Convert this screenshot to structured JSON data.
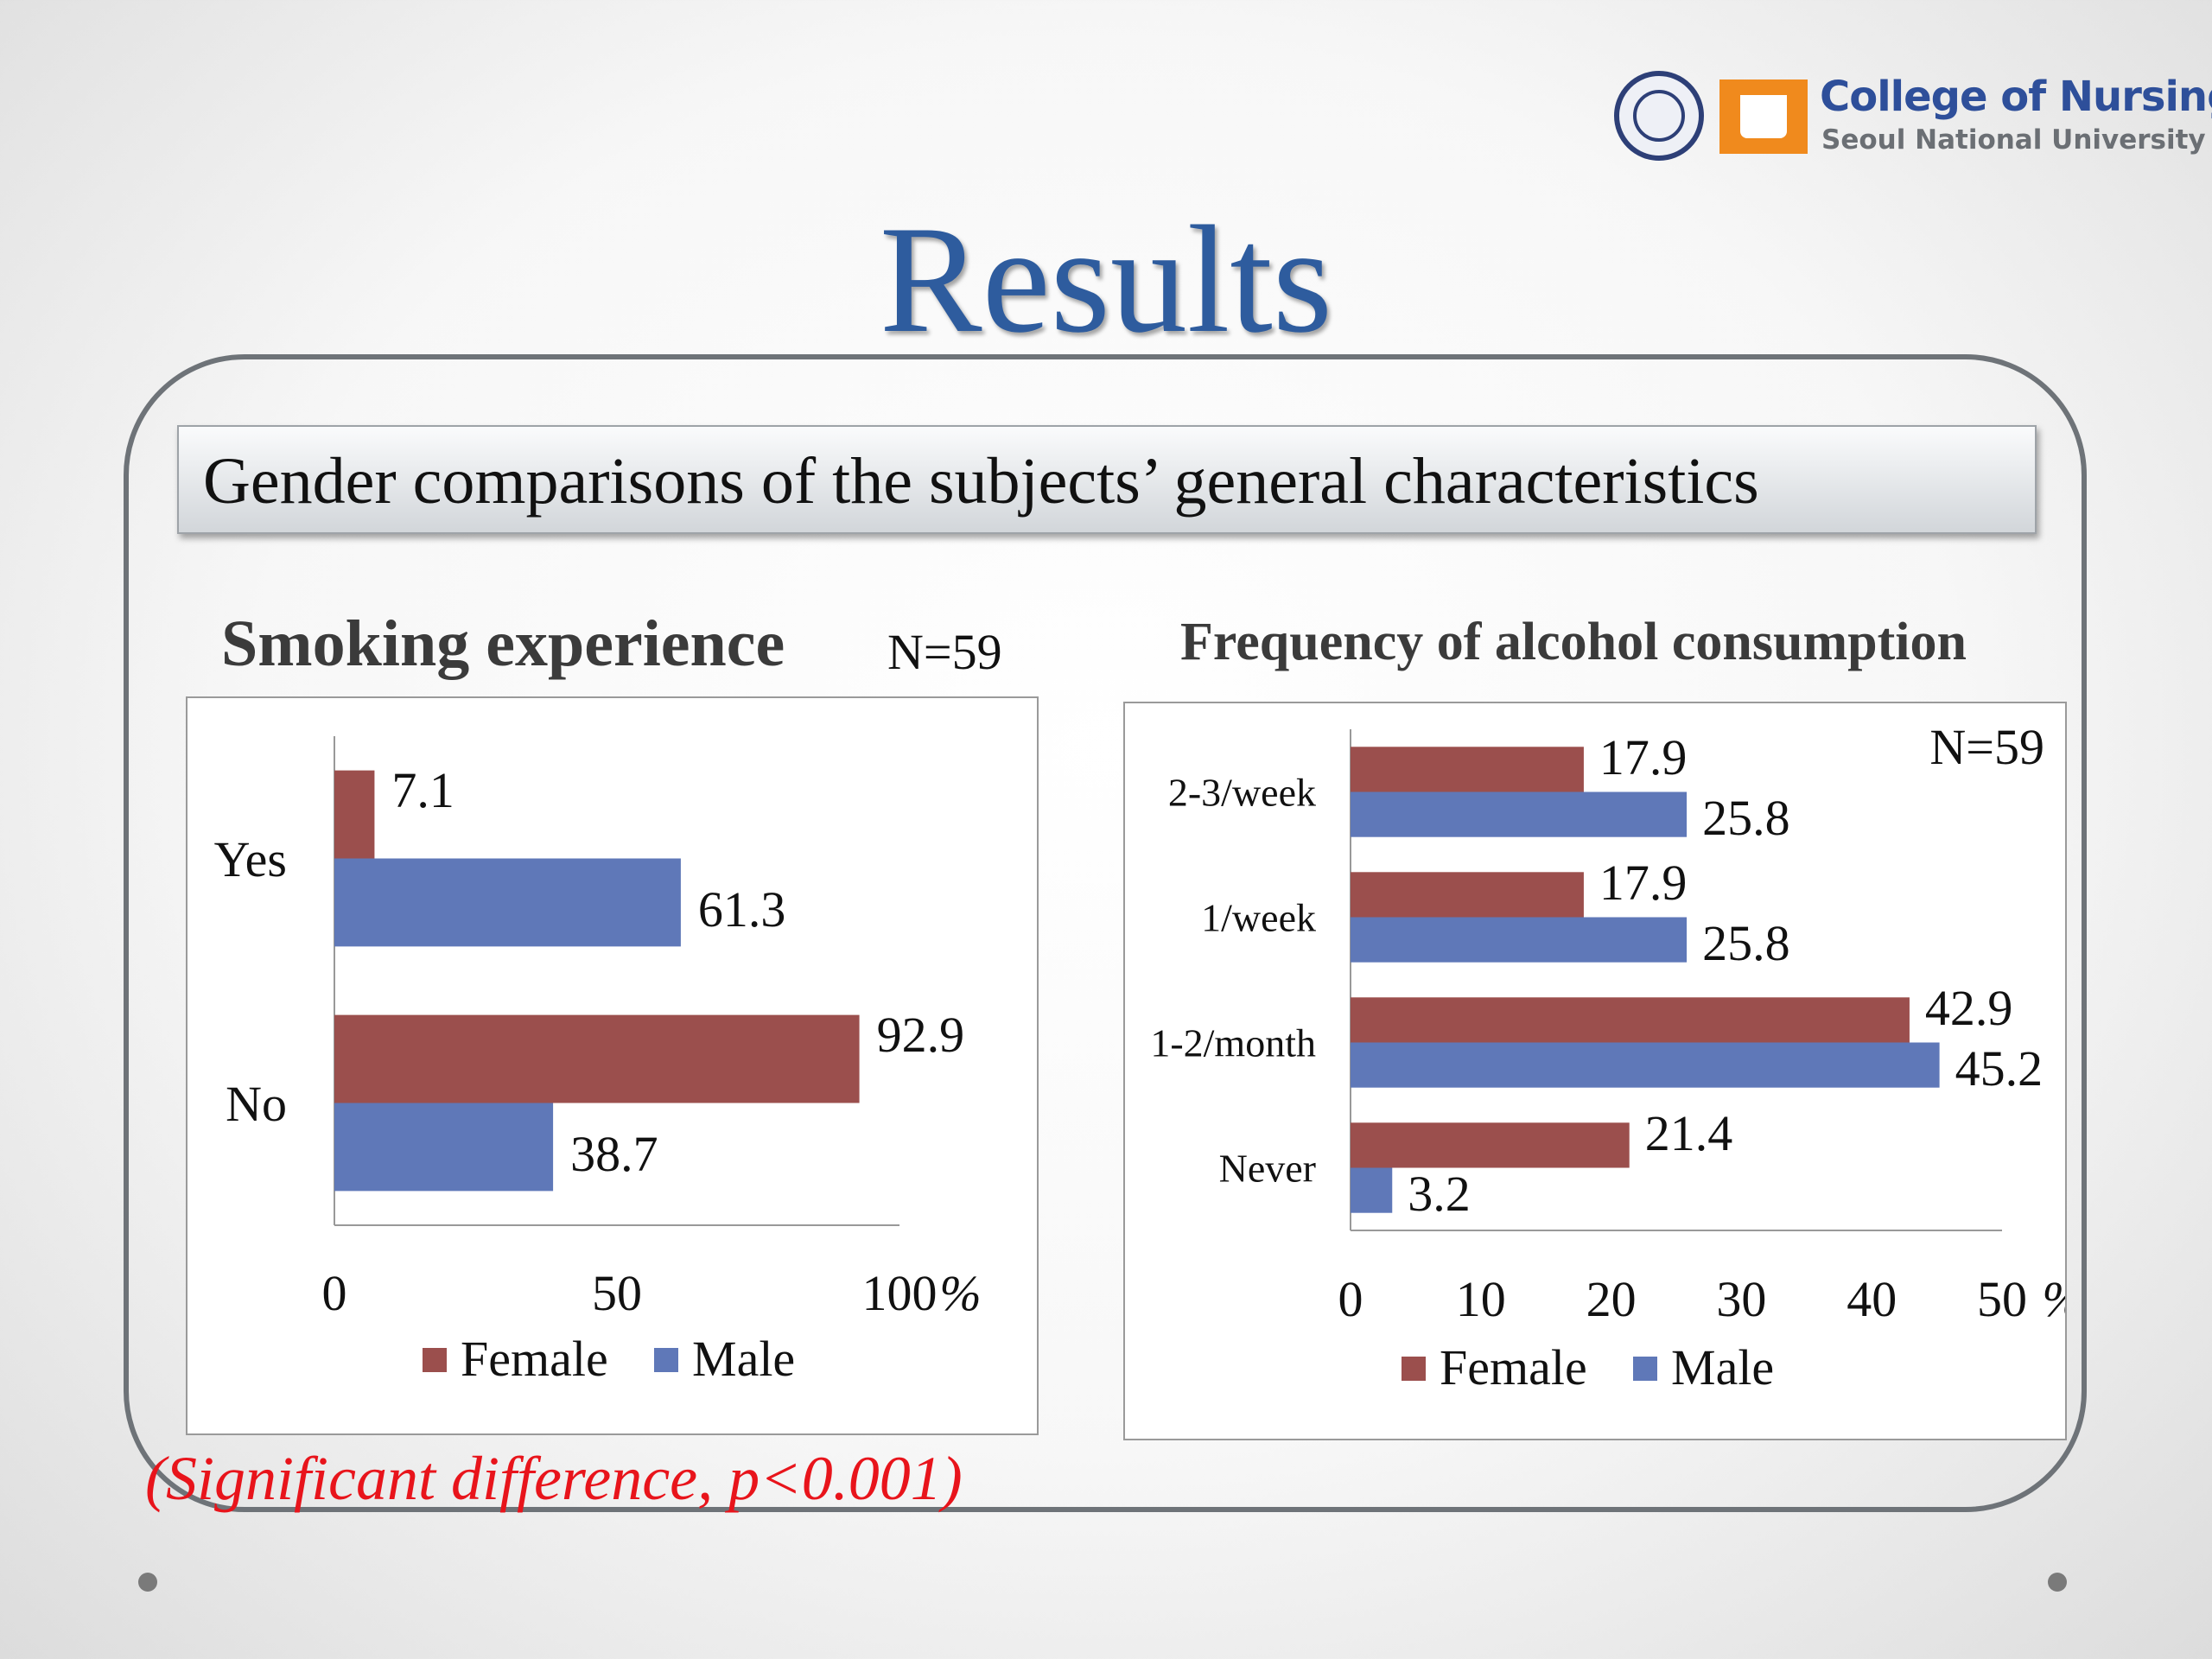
{
  "slide": {
    "title": "Results",
    "subtitle": "Gender comparisons of the subjects’ general characteristics",
    "note": "(Significant difference, p<0.001)",
    "logo": {
      "line1": "College of Nursing",
      "line2": "Seoul National University"
    },
    "colors": {
      "female": "#9b4f4d",
      "male": "#5f78b8",
      "title": "#2e5c9e",
      "note": "#e8141b"
    }
  },
  "chart_data": [
    {
      "type": "bar",
      "orientation": "horizontal",
      "title": "Smoking experience",
      "annotation": "N=59",
      "categories": [
        "Yes",
        "No"
      ],
      "series": [
        {
          "name": "Female",
          "values": [
            7.1,
            92.9
          ]
        },
        {
          "name": "Male",
          "values": [
            61.3,
            38.7
          ]
        }
      ],
      "xlim": [
        0,
        100
      ],
      "xticks": [
        "0",
        "50",
        "100"
      ],
      "unit_label": "%",
      "legend": "bottom",
      "grid": false
    },
    {
      "type": "bar",
      "orientation": "horizontal",
      "title": "Frequency of alcohol consumption",
      "annotation": "N=59",
      "categories": [
        "2-3/week",
        "1/week",
        "1-2/month",
        "Never"
      ],
      "series": [
        {
          "name": "Female",
          "values": [
            17.9,
            17.9,
            42.9,
            21.4
          ]
        },
        {
          "name": "Male",
          "values": [
            25.8,
            25.8,
            45.2,
            3.2
          ]
        }
      ],
      "xlim": [
        0,
        50
      ],
      "xticks": [
        "0",
        "10",
        "20",
        "30",
        "40",
        "50"
      ],
      "unit_label": "%",
      "legend": "bottom",
      "grid": false
    }
  ]
}
